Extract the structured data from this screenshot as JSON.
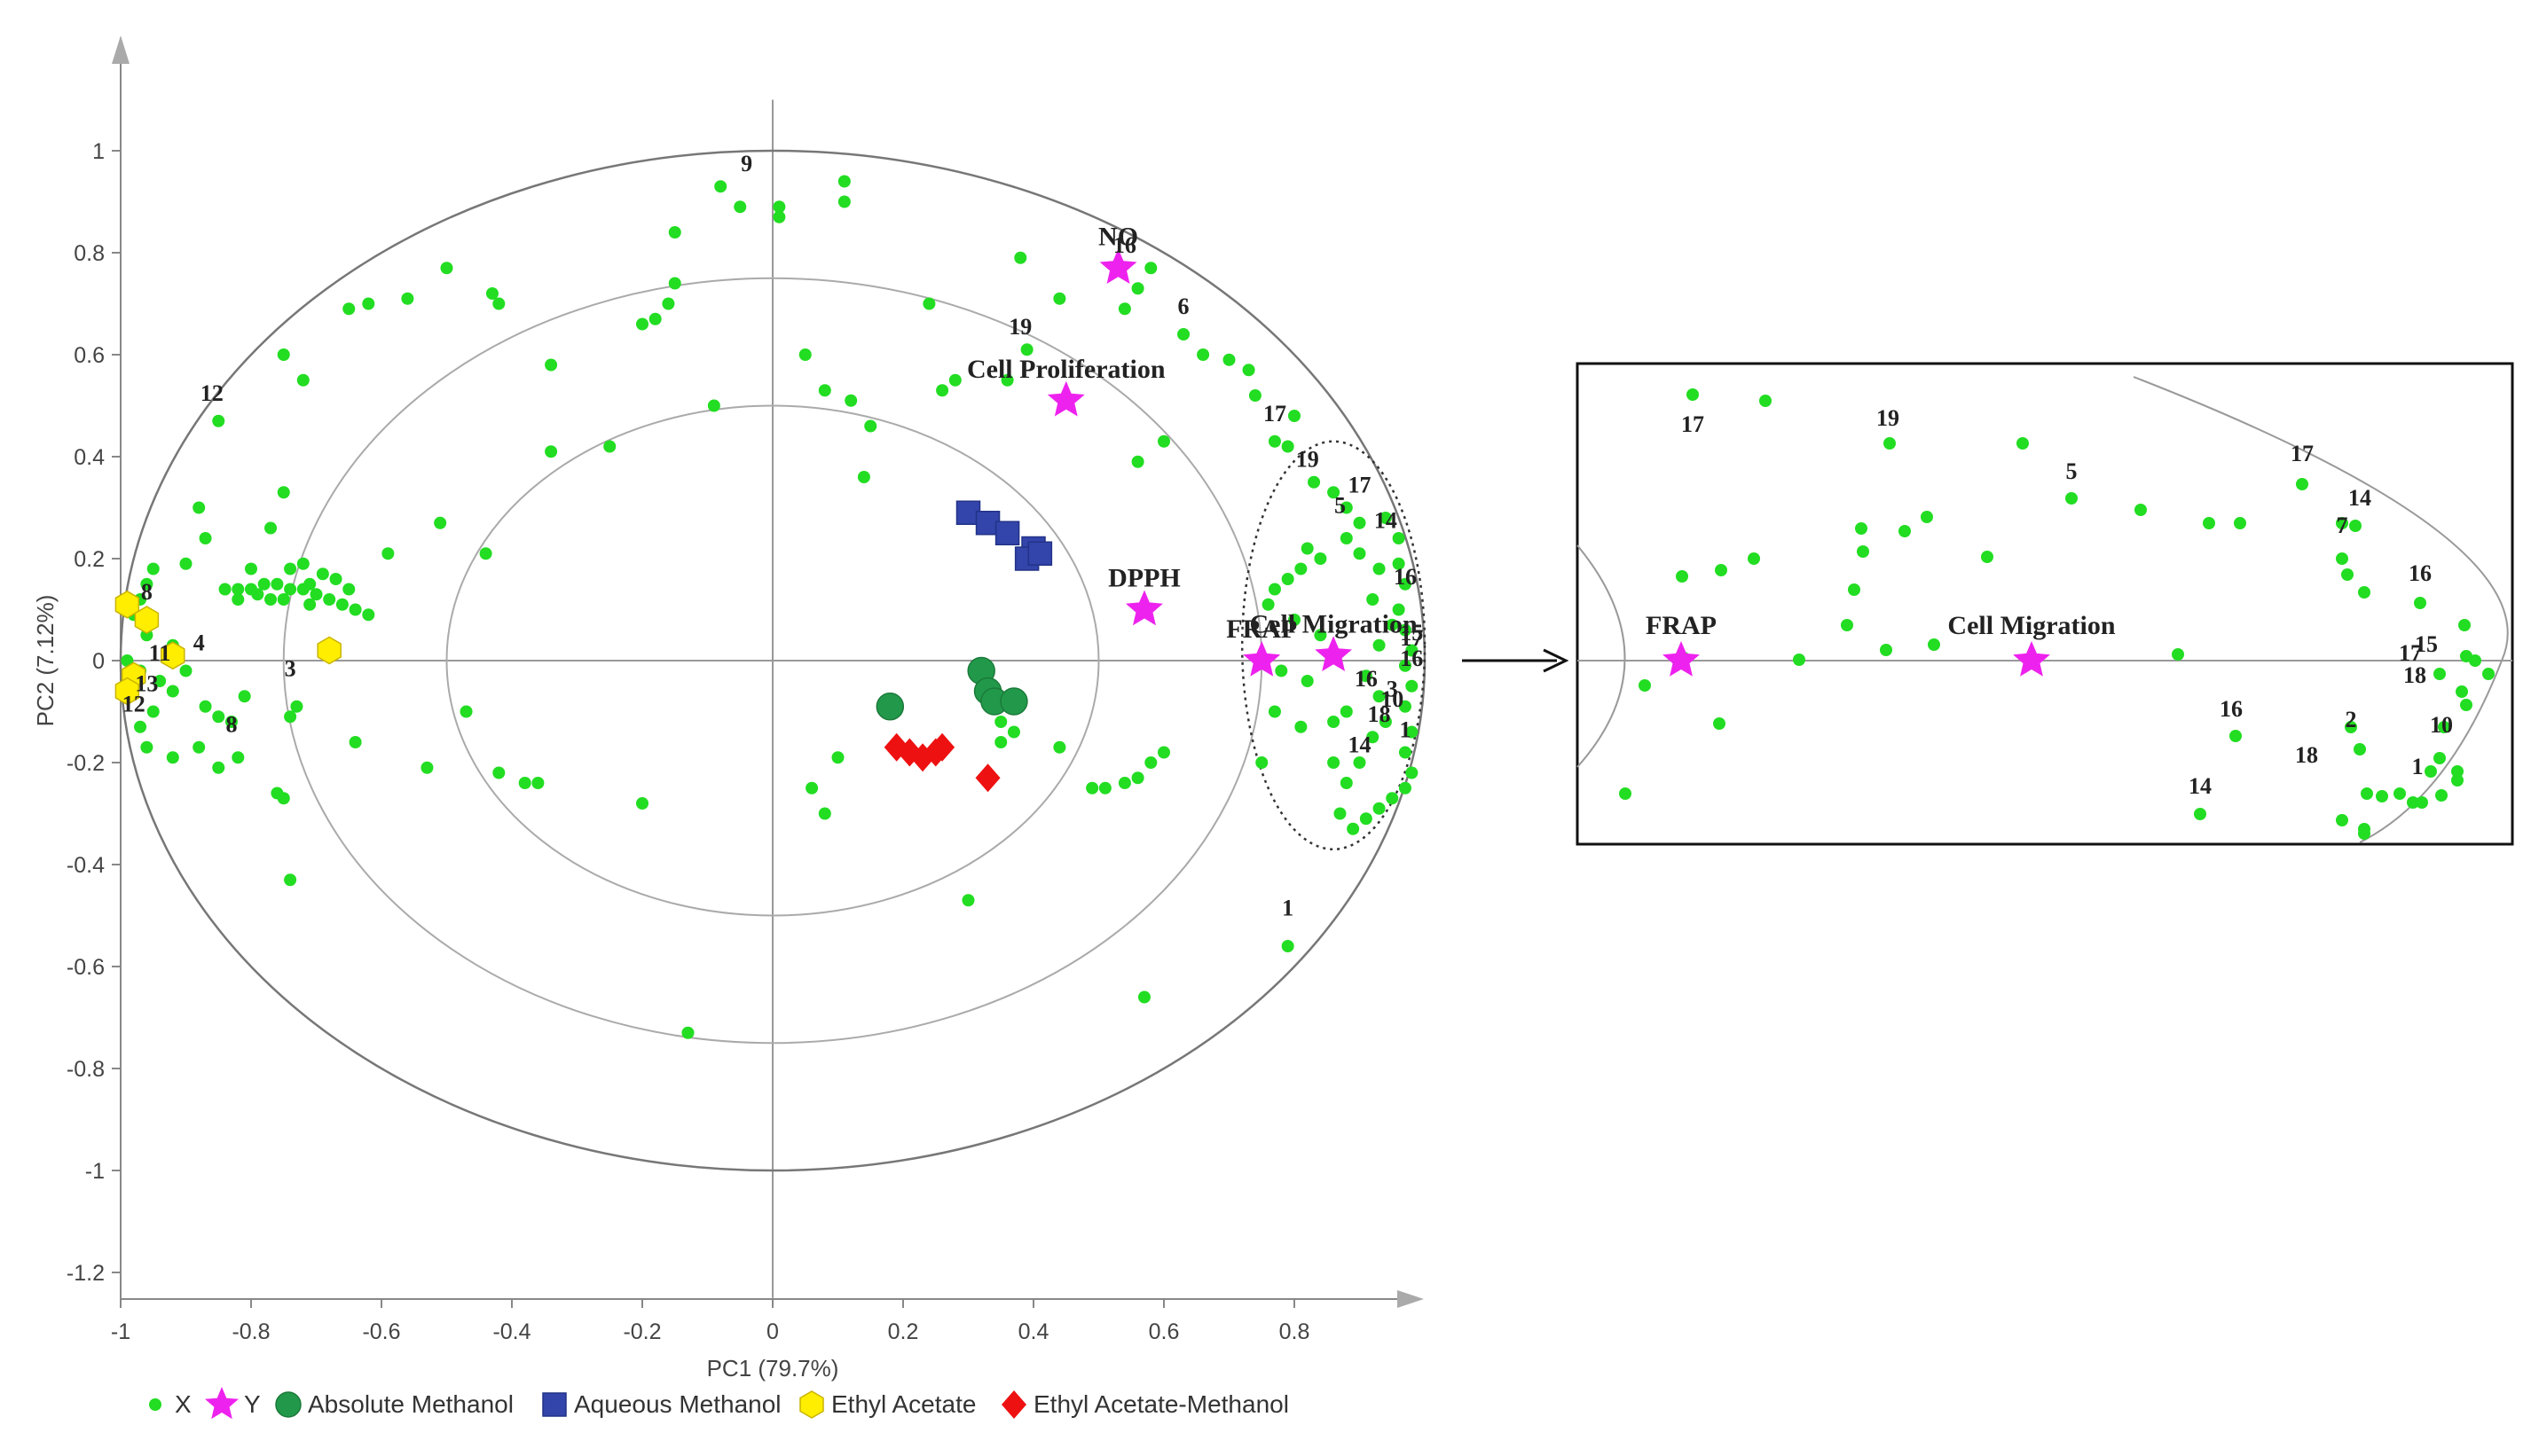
{
  "chart_data": [
    {
      "type": "scatter",
      "title": "",
      "xlabel": "PC1 (79.7%)",
      "ylabel": "PC2 (7.12%)",
      "xlim": [
        -1,
        1
      ],
      "ylim": [
        -1.25,
        1.1
      ],
      "xticks": [
        "-1",
        "-0.8",
        "-0.6",
        "-0.4",
        "-0.2",
        "0",
        "0.2",
        "0.4",
        "0.6",
        "0.8"
      ],
      "yticks": [
        "1",
        "0.8",
        "0.6",
        "0.4",
        "0.2",
        "0",
        "-0.2",
        "-0.4",
        "-0.6",
        "-0.8",
        "-1",
        "-1.2"
      ],
      "circles_radius": [
        1,
        0.75,
        0.5
      ],
      "legend_placement": "bottom",
      "legend": [
        "X",
        "Y",
        "Absolute Methanol",
        "Aqueous Methanol",
        "Ethyl Acetate",
        "Ethyl Acetate-Methanol"
      ],
      "colors": {
        "X": "#22dd22",
        "Y": "#ee22ee",
        "Absolute Methanol": "#22994a",
        "Aqueous Methanol": "#3344aa",
        "Ethyl Acetate": "#ffee00",
        "Ethyl Acetate-Methanol": "#ee1111"
      },
      "series": [
        {
          "name": "X",
          "marker": "dot",
          "points": [
            [
              0.11,
              0.94
            ],
            [
              0.11,
              0.9
            ],
            [
              -0.05,
              0.89
            ],
            [
              0.01,
              0.89
            ],
            [
              0.01,
              0.87
            ],
            [
              -0.15,
              0.84
            ],
            [
              -0.16,
              0.7
            ],
            [
              -0.18,
              0.67
            ],
            [
              -0.2,
              0.66
            ],
            [
              -0.15,
              0.74
            ],
            [
              -0.08,
              0.93
            ],
            [
              -0.43,
              0.72
            ],
            [
              -0.42,
              0.7
            ],
            [
              -0.5,
              0.77
            ],
            [
              -0.56,
              0.71
            ],
            [
              -0.62,
              0.7
            ],
            [
              -0.65,
              0.69
            ],
            [
              -0.34,
              0.58
            ],
            [
              -0.72,
              0.55
            ],
            [
              -0.75,
              0.6
            ],
            [
              -0.85,
              0.47
            ],
            [
              -0.34,
              0.41
            ],
            [
              -0.25,
              0.42
            ],
            [
              -0.09,
              0.5
            ],
            [
              -0.51,
              0.27
            ],
            [
              -0.59,
              0.21
            ],
            [
              -0.44,
              0.21
            ],
            [
              -0.75,
              0.33
            ],
            [
              -0.77,
              0.26
            ],
            [
              -0.88,
              0.3
            ],
            [
              -0.87,
              0.24
            ],
            [
              -0.9,
              0.19
            ],
            [
              -0.95,
              0.18
            ],
            [
              -0.96,
              0.15
            ],
            [
              -0.97,
              0.12
            ],
            [
              -0.98,
              0.09
            ],
            [
              -0.96,
              0.05
            ],
            [
              -0.99,
              0.0
            ],
            [
              -0.97,
              -0.02
            ],
            [
              -0.94,
              -0.04
            ],
            [
              -0.92,
              -0.06
            ],
            [
              -0.95,
              -0.1
            ],
            [
              -0.97,
              -0.13
            ],
            [
              -0.96,
              -0.17
            ],
            [
              -0.92,
              -0.19
            ],
            [
              -0.88,
              -0.17
            ],
            [
              -0.85,
              -0.21
            ],
            [
              -0.82,
              -0.19
            ],
            [
              -0.87,
              -0.09
            ],
            [
              -0.85,
              -0.11
            ],
            [
              -0.83,
              -0.12
            ],
            [
              -0.81,
              -0.07
            ],
            [
              -0.9,
              -0.02
            ],
            [
              -0.92,
              0.03
            ],
            [
              -0.76,
              -0.26
            ],
            [
              -0.75,
              -0.27
            ],
            [
              -0.74,
              -0.43
            ],
            [
              -0.74,
              -0.11
            ],
            [
              -0.73,
              -0.09
            ],
            [
              -0.64,
              -0.16
            ],
            [
              -0.53,
              -0.21
            ],
            [
              -0.47,
              -0.1
            ],
            [
              -0.42,
              -0.22
            ],
            [
              -0.38,
              -0.24
            ],
            [
              -0.36,
              -0.24
            ],
            [
              -0.2,
              -0.28
            ],
            [
              -0.13,
              -0.73
            ],
            [
              -0.84,
              0.14
            ],
            [
              -0.82,
              0.14
            ],
            [
              -0.8,
              0.14
            ],
            [
              -0.78,
              0.15
            ],
            [
              -0.76,
              0.15
            ],
            [
              -0.74,
              0.14
            ],
            [
              -0.72,
              0.14
            ],
            [
              -0.7,
              0.13
            ],
            [
              -0.68,
              0.12
            ],
            [
              -0.66,
              0.11
            ],
            [
              -0.64,
              0.1
            ],
            [
              -0.62,
              0.09
            ],
            [
              -0.82,
              0.12
            ],
            [
              -0.79,
              0.13
            ],
            [
              -0.75,
              0.12
            ],
            [
              -0.71,
              0.11
            ],
            [
              -0.69,
              0.17
            ],
            [
              -0.72,
              0.19
            ],
            [
              -0.67,
              0.16
            ],
            [
              -0.65,
              0.14
            ],
            [
              -0.8,
              0.18
            ],
            [
              -0.77,
              0.12
            ],
            [
              -0.74,
              0.18
            ],
            [
              -0.71,
              0.15
            ],
            [
              0.05,
              0.6
            ],
            [
              0.08,
              0.53
            ],
            [
              0.12,
              0.51
            ],
            [
              0.15,
              0.46
            ],
            [
              0.14,
              0.36
            ],
            [
              0.24,
              0.7
            ],
            [
              0.26,
              0.53
            ],
            [
              0.28,
              0.55
            ],
            [
              0.36,
              0.55
            ],
            [
              0.39,
              0.61
            ],
            [
              0.44,
              0.71
            ],
            [
              0.38,
              0.79
            ],
            [
              0.54,
              0.69
            ],
            [
              0.56,
              0.73
            ],
            [
              0.58,
              0.77
            ],
            [
              0.63,
              0.64
            ],
            [
              0.66,
              0.6
            ],
            [
              0.6,
              0.43
            ],
            [
              0.56,
              0.39
            ],
            [
              0.7,
              0.59
            ],
            [
              0.73,
              0.57
            ],
            [
              0.74,
              0.52
            ],
            [
              0.3,
              -0.47
            ],
            [
              0.57,
              -0.66
            ],
            [
              0.79,
              -0.56
            ],
            [
              0.06,
              -0.25
            ],
            [
              0.08,
              -0.3
            ],
            [
              0.1,
              -0.19
            ],
            [
              0.35,
              -0.16
            ],
            [
              0.44,
              -0.17
            ],
            [
              0.49,
              -0.25
            ],
            [
              0.51,
              -0.25
            ],
            [
              0.54,
              -0.24
            ],
            [
              0.56,
              -0.23
            ],
            [
              0.58,
              -0.2
            ],
            [
              0.6,
              -0.18
            ],
            [
              0.35,
              -0.12
            ],
            [
              0.37,
              -0.14
            ],
            [
              0.77,
              0.43
            ],
            [
              0.79,
              0.42
            ],
            [
              0.8,
              0.48
            ],
            [
              0.83,
              0.35
            ],
            [
              0.86,
              0.33
            ],
            [
              0.88,
              0.3
            ],
            [
              0.9,
              0.27
            ],
            [
              0.94,
              0.28
            ],
            [
              0.96,
              0.24
            ],
            [
              0.96,
              0.19
            ],
            [
              0.97,
              0.15
            ],
            [
              0.96,
              0.1
            ],
            [
              0.97,
              0.06
            ],
            [
              0.98,
              0.02
            ],
            [
              0.97,
              -0.01
            ],
            [
              0.98,
              -0.05
            ],
            [
              0.97,
              -0.09
            ],
            [
              0.98,
              -0.14
            ],
            [
              0.97,
              -0.18
            ],
            [
              0.98,
              -0.22
            ],
            [
              0.97,
              -0.25
            ],
            [
              0.95,
              -0.27
            ],
            [
              0.93,
              -0.29
            ],
            [
              0.91,
              -0.31
            ],
            [
              0.89,
              -0.33
            ],
            [
              0.87,
              -0.3
            ],
            [
              0.88,
              -0.24
            ],
            [
              0.9,
              -0.2
            ],
            [
              0.92,
              -0.15
            ],
            [
              0.94,
              -0.12
            ],
            [
              0.93,
              -0.07
            ],
            [
              0.91,
              -0.03
            ],
            [
              0.93,
              0.03
            ],
            [
              0.95,
              0.07
            ],
            [
              0.92,
              0.12
            ],
            [
              0.93,
              0.18
            ],
            [
              0.9,
              0.21
            ],
            [
              0.88,
              0.24
            ],
            [
              0.84,
              0.2
            ],
            [
              0.82,
              0.22
            ],
            [
              0.81,
              0.18
            ],
            [
              0.79,
              0.16
            ],
            [
              0.77,
              0.14
            ],
            [
              0.76,
              0.11
            ],
            [
              0.8,
              0.08
            ],
            [
              0.84,
              0.05
            ],
            [
              0.82,
              -0.04
            ],
            [
              0.78,
              -0.02
            ],
            [
              0.77,
              -0.1
            ],
            [
              0.81,
              -0.13
            ],
            [
              0.86,
              -0.12
            ],
            [
              0.88,
              -0.1
            ],
            [
              0.86,
              -0.2
            ],
            [
              0.75,
              -0.2
            ]
          ]
        },
        {
          "name": "Y",
          "marker": "star",
          "points": [
            {
              "label": "NO",
              "x": 0.53,
              "y": 0.77
            },
            {
              "label": "Cell Proliferation",
              "x": 0.45,
              "y": 0.51
            },
            {
              "label": "DPPH",
              "x": 0.57,
              "y": 0.1
            },
            {
              "label": "FRAP",
              "x": 0.75,
              "y": 0.0
            },
            {
              "label": "Cell Migration",
              "x": 0.86,
              "y": 0.01
            }
          ]
        },
        {
          "name": "Absolute Methanol",
          "marker": "circle",
          "points": [
            [
              0.18,
              -0.09
            ],
            [
              0.32,
              -0.02
            ],
            [
              0.33,
              -0.06
            ],
            [
              0.34,
              -0.08
            ],
            [
              0.37,
              -0.08
            ]
          ]
        },
        {
          "name": "Aqueous Methanol",
          "marker": "square",
          "points": [
            [
              0.3,
              0.29
            ],
            [
              0.33,
              0.27
            ],
            [
              0.36,
              0.25
            ],
            [
              0.4,
              0.22
            ],
            [
              0.39,
              0.2
            ],
            [
              0.41,
              0.21
            ]
          ]
        },
        {
          "name": "Ethyl Acetate",
          "marker": "hexagon",
          "points": [
            [
              -0.99,
              0.11
            ],
            [
              -0.96,
              0.08
            ],
            [
              -0.98,
              -0.03
            ],
            [
              -0.99,
              -0.06
            ],
            [
              -0.92,
              0.01
            ],
            [
              -0.68,
              0.02
            ]
          ]
        },
        {
          "name": "Ethyl Acetate-Methanol",
          "marker": "diamond",
          "points": [
            [
              0.19,
              -0.17
            ],
            [
              0.21,
              -0.18
            ],
            [
              0.23,
              -0.19
            ],
            [
              0.25,
              -0.18
            ],
            [
              0.26,
              -0.17
            ],
            [
              0.33,
              -0.23
            ]
          ]
        }
      ],
      "annotations": [
        {
          "text": "9",
          "x": -0.04,
          "y": 0.96
        },
        {
          "text": "16",
          "x": 0.54,
          "y": 0.8
        },
        {
          "text": "6",
          "x": 0.63,
          "y": 0.68
        },
        {
          "text": "19",
          "x": 0.38,
          "y": 0.64
        },
        {
          "text": "12",
          "x": -0.86,
          "y": 0.51
        },
        {
          "text": "17",
          "x": 0.77,
          "y": 0.47
        },
        {
          "text": "19",
          "x": 0.82,
          "y": 0.38
        },
        {
          "text": "17",
          "x": 0.9,
          "y": 0.33
        },
        {
          "text": "5",
          "x": 0.87,
          "y": 0.29
        },
        {
          "text": "14",
          "x": 0.94,
          "y": 0.26
        },
        {
          "text": "16",
          "x": 0.97,
          "y": 0.15
        },
        {
          "text": "15",
          "x": 0.98,
          "y": 0.04
        },
        {
          "text": "17",
          "x": 0.98,
          "y": 0.03
        },
        {
          "text": "16",
          "x": 0.98,
          "y": -0.01
        },
        {
          "text": "16",
          "x": 0.91,
          "y": -0.05
        },
        {
          "text": "3",
          "x": 0.95,
          "y": -0.07
        },
        {
          "text": "10",
          "x": 0.95,
          "y": -0.09
        },
        {
          "text": "18",
          "x": 0.93,
          "y": -0.12
        },
        {
          "text": "1",
          "x": 0.97,
          "y": -0.15
        },
        {
          "text": "14",
          "x": 0.9,
          "y": -0.18
        },
        {
          "text": "8",
          "x": -0.96,
          "y": 0.12
        },
        {
          "text": "4",
          "x": -0.88,
          "y": 0.02
        },
        {
          "text": "11",
          "x": -0.94,
          "y": 0.0
        },
        {
          "text": "3",
          "x": -0.74,
          "y": -0.03
        },
        {
          "text": "13",
          "x": -0.96,
          "y": -0.06
        },
        {
          "text": "12",
          "x": -0.98,
          "y": -0.1
        },
        {
          "text": "8",
          "x": -0.83,
          "y": -0.14
        },
        {
          "text": "1",
          "x": 0.79,
          "y": -0.5
        }
      ]
    },
    {
      "type": "scatter",
      "title": "",
      "note": "zoomed inset of the dotted region of the main plot",
      "series": [
        {
          "name": "Y",
          "marker": "star",
          "points": [
            {
              "label": "FRAP",
              "x": 0.75,
              "y": 0.0
            },
            {
              "label": "Cell Migration",
              "x": 0.86,
              "y": 0.01
            }
          ]
        }
      ],
      "annotations": [
        "17",
        "19",
        "5",
        "17",
        "14",
        "7",
        "16",
        "15",
        "17",
        "18",
        "10",
        "2",
        "18",
        "1",
        "16",
        "14"
      ]
    }
  ]
}
